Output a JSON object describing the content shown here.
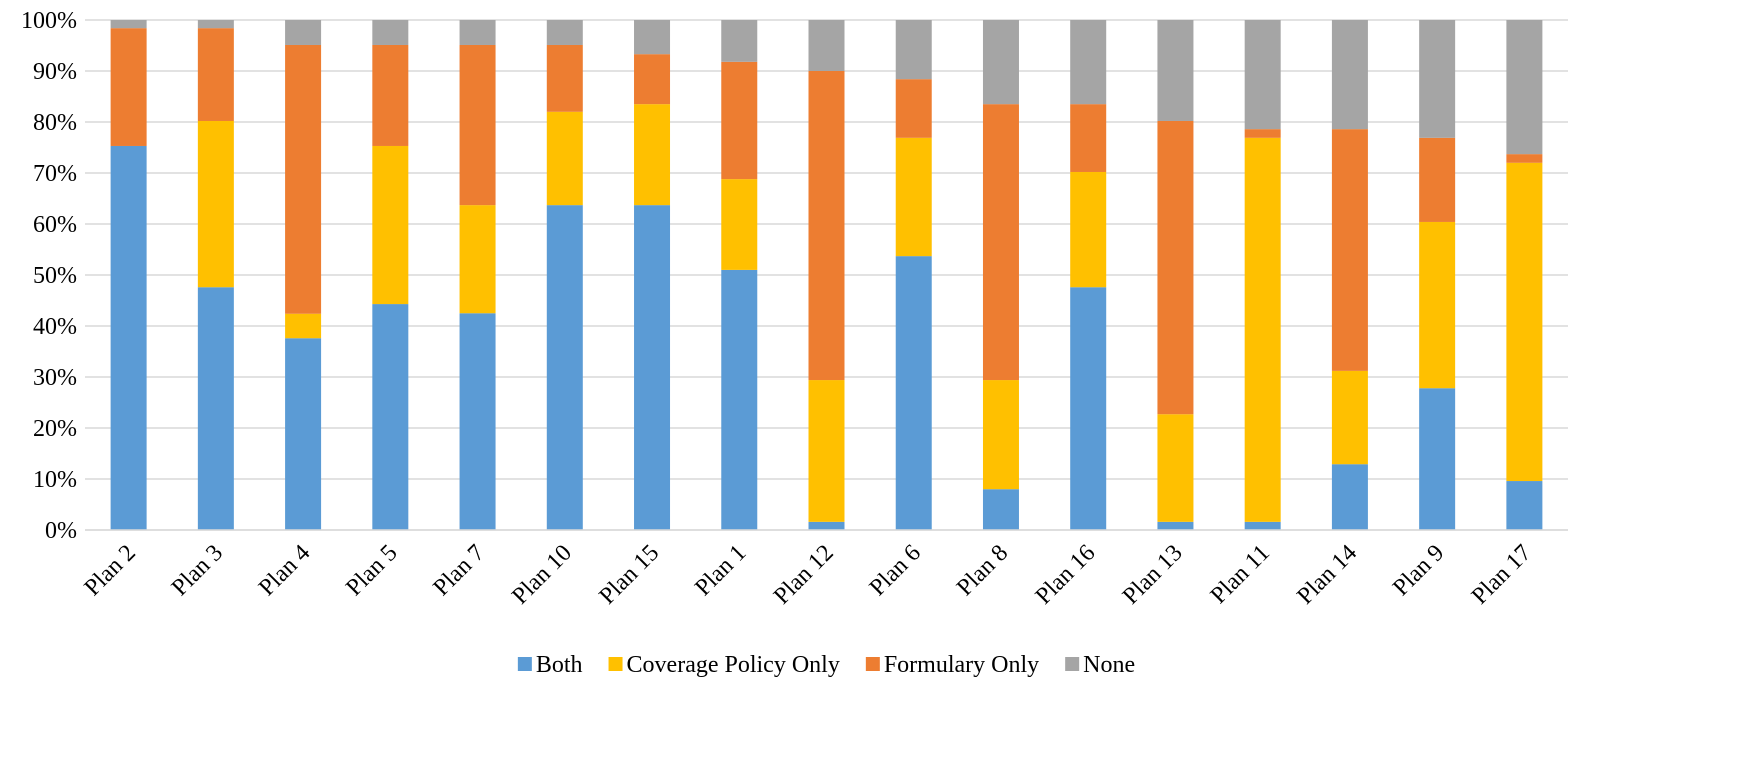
{
  "chart_data": {
    "type": "stacked_bar",
    "categories": [
      "Plan 2",
      "Plan 3",
      "Plan 4",
      "Plan 5",
      "Plan 7",
      "Plan 10",
      "Plan 15",
      "Plan 1",
      "Plan 12",
      "Plan 6",
      "Plan 8",
      "Plan 16",
      "Plan 13",
      "Plan 11",
      "Plan 14",
      "Plan 9",
      "Plan 17"
    ],
    "series": [
      {
        "name": "Both",
        "color": "#5b9bd5",
        "values": [
          75.3,
          47.6,
          37.6,
          44.3,
          42.5,
          63.7,
          63.7,
          51.0,
          1.6,
          53.7,
          8.0,
          47.6,
          1.6,
          1.6,
          12.9,
          27.8,
          9.6
        ]
      },
      {
        "name": "Coverage Policy Only",
        "color": "#ffc000",
        "values": [
          0,
          32.6,
          4.8,
          31.0,
          21.2,
          18.3,
          19.8,
          17.8,
          27.8,
          23.2,
          21.4,
          22.6,
          21.1,
          75.3,
          18.3,
          32.6,
          62.4
        ]
      },
      {
        "name": "Formulary Only",
        "color": "#ed7d31",
        "values": [
          23.1,
          18.2,
          52.7,
          19.8,
          31.4,
          13.1,
          9.8,
          23.0,
          60.6,
          11.5,
          54.1,
          13.3,
          57.5,
          1.7,
          47.4,
          16.5,
          1.7
        ]
      },
      {
        "name": "None",
        "color": "#a5a5a5",
        "values": [
          1.6,
          1.6,
          4.9,
          4.9,
          4.9,
          4.9,
          6.7,
          8.2,
          10.0,
          11.6,
          16.5,
          16.5,
          19.8,
          21.4,
          21.4,
          23.1,
          26.3
        ]
      }
    ],
    "ylim": [
      0,
      100
    ],
    "yticks": [
      {
        "value": 0,
        "label": "0%"
      },
      {
        "value": 10,
        "label": "10%"
      },
      {
        "value": 20,
        "label": "20%"
      },
      {
        "value": 30,
        "label": "30%"
      },
      {
        "value": 40,
        "label": "40%"
      },
      {
        "value": 50,
        "label": "50%"
      },
      {
        "value": 60,
        "label": "60%"
      },
      {
        "value": 70,
        "label": "70%"
      },
      {
        "value": 80,
        "label": "80%"
      },
      {
        "value": 90,
        "label": "90%"
      },
      {
        "value": 100,
        "label": "100%"
      }
    ],
    "grid": true,
    "legend": "bottom"
  }
}
